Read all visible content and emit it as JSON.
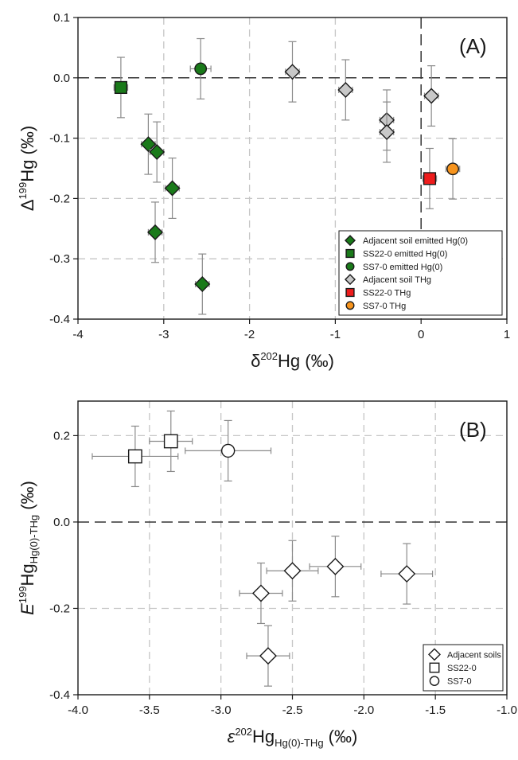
{
  "chart_data": [
    {
      "id": "A",
      "type": "scatter",
      "panel_label": "(A)",
      "xlabel_main": "δ",
      "xlabel_sup": "202",
      "xlabel_tail": "Hg (‰)",
      "ylabel_main": "Δ",
      "ylabel_sup": "199",
      "ylabel_tail": "Hg (‰)",
      "xlim": [
        -4,
        1
      ],
      "ylim": [
        -0.4,
        0.1
      ],
      "xticks": [
        -4,
        -3,
        -2,
        -1,
        0,
        1
      ],
      "xtick_labels": [
        "-4",
        "-3",
        "-2",
        "-1",
        "0",
        "1"
      ],
      "yticks": [
        -0.4,
        -0.3,
        -0.2,
        -0.1,
        0.0,
        0.1
      ],
      "ytick_labels": [
        "-0.4",
        "-0.3",
        "-0.2",
        "-0.1",
        "0.0",
        "0.1"
      ],
      "grid": true,
      "zero_lines": true,
      "legend_position": "bottom-right",
      "series": [
        {
          "name": "Adjacent soil emitted Hg(0)",
          "marker": "diamond",
          "color": "#1a7a1a",
          "points": [
            {
              "x": -3.18,
              "y": -0.11,
              "yerr": 0.05,
              "xerr": 0.08
            },
            {
              "x": -3.08,
              "y": -0.123,
              "yerr": 0.05,
              "xerr": 0.08
            },
            {
              "x": -2.9,
              "y": -0.183,
              "yerr": 0.05,
              "xerr": 0.08
            },
            {
              "x": -3.1,
              "y": -0.256,
              "yerr": 0.05,
              "xerr": 0.08
            },
            {
              "x": -2.55,
              "y": -0.342,
              "yerr": 0.05,
              "xerr": 0.08
            }
          ]
        },
        {
          "name": "SS22-0 emitted Hg(0)",
          "marker": "square",
          "color": "#1a7a1a",
          "points": [
            {
              "x": -3.5,
              "y": -0.016,
              "yerr": 0.05,
              "xerr": 0.08
            }
          ]
        },
        {
          "name": "SS7-0 emitted Hg(0)",
          "marker": "circle",
          "color": "#1a7a1a",
          "points": [
            {
              "x": -2.57,
              "y": 0.015,
              "yerr": 0.05,
              "xerr": 0.12
            }
          ]
        },
        {
          "name": "Adjacent soil THg",
          "marker": "diamond",
          "color": "#c8c8c8",
          "points": [
            {
              "x": -1.5,
              "y": 0.01,
              "yerr": 0.05,
              "xerr": 0.08
            },
            {
              "x": -0.88,
              "y": -0.02,
              "yerr": 0.05,
              "xerr": 0.08
            },
            {
              "x": -0.4,
              "y": -0.07,
              "yerr": 0.05,
              "xerr": 0.08
            },
            {
              "x": -0.4,
              "y": -0.09,
              "yerr": 0.05,
              "xerr": 0.08
            },
            {
              "x": 0.12,
              "y": -0.03,
              "yerr": 0.05,
              "xerr": 0.08
            }
          ]
        },
        {
          "name": "SS22-0 THg",
          "marker": "square",
          "color": "#ee1c1c",
          "points": [
            {
              "x": 0.1,
              "y": -0.167,
              "yerr": 0.05,
              "xerr": 0.08
            }
          ]
        },
        {
          "name": "SS7-0 THg",
          "marker": "circle",
          "color": "#f7941d",
          "points": [
            {
              "x": 0.37,
              "y": -0.151,
              "yerr": 0.05,
              "xerr": 0.08
            }
          ]
        }
      ]
    },
    {
      "id": "B",
      "type": "scatter",
      "panel_label": "(B)",
      "xlabel_main": "ε",
      "xlabel_sup": "202",
      "xlabel_mid": "Hg",
      "xlabel_sub": "Hg(0)-THg",
      "xlabel_tail": " (‰)",
      "ylabel_main": "E",
      "ylabel_sup": "199",
      "ylabel_mid": "Hg",
      "ylabel_sub": "Hg(0)-THg",
      "ylabel_tail": " (‰)",
      "xlim": [
        -4.0,
        -1.0
      ],
      "ylim": [
        -0.4,
        0.28
      ],
      "xticks": [
        -4.0,
        -3.5,
        -3.0,
        -2.5,
        -2.0,
        -1.5,
        -1.0
      ],
      "xtick_labels": [
        "-4.0",
        "-3.5",
        "-3.0",
        "-2.5",
        "-2.0",
        "-1.5",
        "-1.0"
      ],
      "yticks": [
        -0.4,
        -0.2,
        0.0,
        0.2
      ],
      "ytick_labels": [
        "-0.4",
        "-0.2",
        "0.0",
        "0.2"
      ],
      "grid": true,
      "zero_lines": true,
      "legend_position": "bottom-right",
      "series": [
        {
          "name": "Adjacent soils",
          "marker": "diamond",
          "color": "#ffffff",
          "points": [
            {
              "x": -2.72,
              "y": -0.165,
              "yerr": 0.07,
              "xerr": 0.15
            },
            {
              "x": -2.5,
              "y": -0.113,
              "yerr": 0.07,
              "xerr": 0.18
            },
            {
              "x": -2.2,
              "y": -0.103,
              "yerr": 0.07,
              "xerr": 0.18
            },
            {
              "x": -1.7,
              "y": -0.12,
              "yerr": 0.07,
              "xerr": 0.18
            },
            {
              "x": -2.67,
              "y": -0.31,
              "yerr": 0.07,
              "xerr": 0.15
            }
          ]
        },
        {
          "name": "SS22-0",
          "marker": "square",
          "color": "#ffffff",
          "points": [
            {
              "x": -3.6,
              "y": 0.152,
              "yerr": 0.07,
              "xerr": 0.3
            },
            {
              "x": -3.35,
              "y": 0.187,
              "yerr": 0.07,
              "xerr": 0.15
            }
          ]
        },
        {
          "name": "SS7-0",
          "marker": "circle",
          "color": "#ffffff",
          "points": [
            {
              "x": -2.95,
              "y": 0.165,
              "yerr": 0.07,
              "xerr": 0.3
            }
          ]
        }
      ]
    }
  ]
}
